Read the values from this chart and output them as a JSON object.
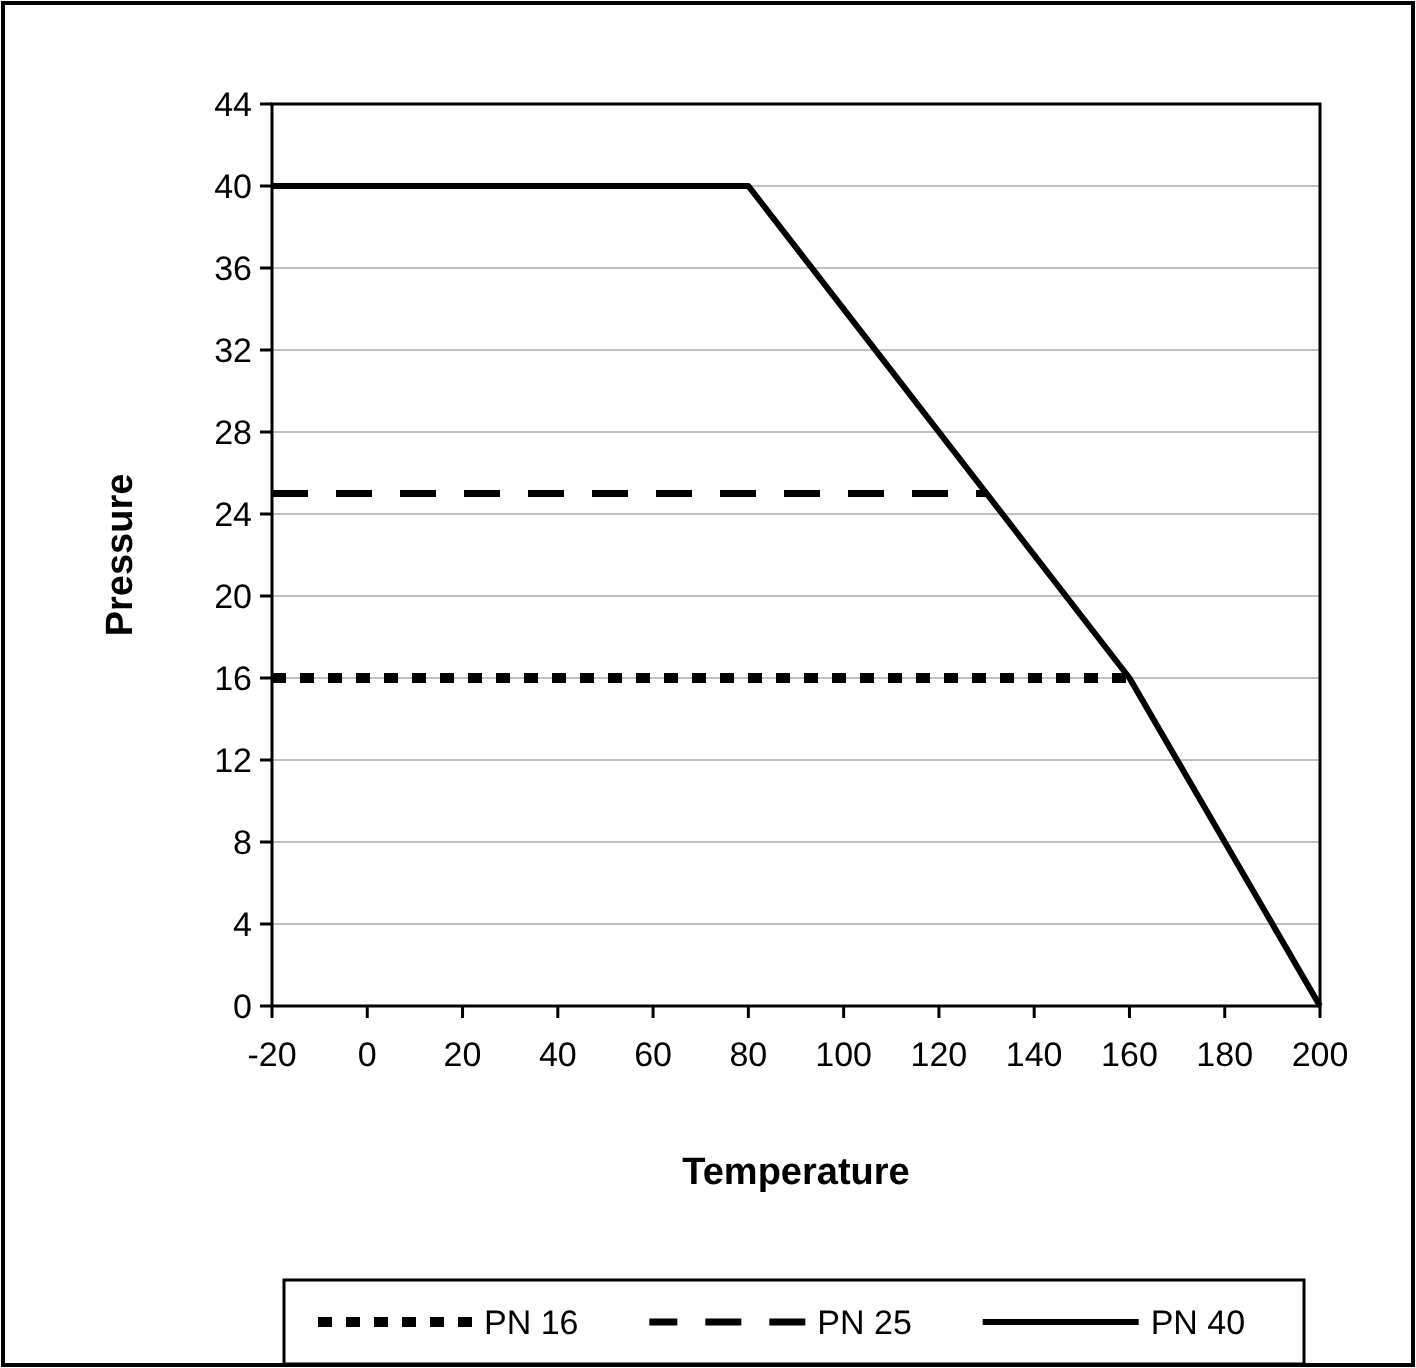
{
  "chart_data": {
    "type": "line",
    "xlabel": "Temperature",
    "ylabel": "Pressure",
    "xlim": [
      -20,
      200
    ],
    "xticks": [
      -20,
      0,
      20,
      40,
      60,
      80,
      100,
      120,
      140,
      160,
      180,
      200
    ],
    "ylim": [
      0,
      44
    ],
    "yticks": [
      0,
      4,
      8,
      12,
      16,
      20,
      24,
      28,
      32,
      36,
      40,
      44
    ],
    "grid": "y",
    "legend": "bottom",
    "series": [
      {
        "name": "PN 16",
        "color": "#000000",
        "line_style": "dotted",
        "x": [
          -20,
          160
        ],
        "values": [
          16,
          16
        ]
      },
      {
        "name": "PN 25",
        "color": "#000000",
        "line_style": "dashed",
        "x": [
          -20,
          130
        ],
        "values": [
          25,
          25
        ]
      },
      {
        "name": "PN 40",
        "color": "#000000",
        "line_style": "solid",
        "x": [
          -20,
          80,
          160,
          200
        ],
        "values": [
          40,
          40,
          16,
          0
        ]
      }
    ]
  }
}
